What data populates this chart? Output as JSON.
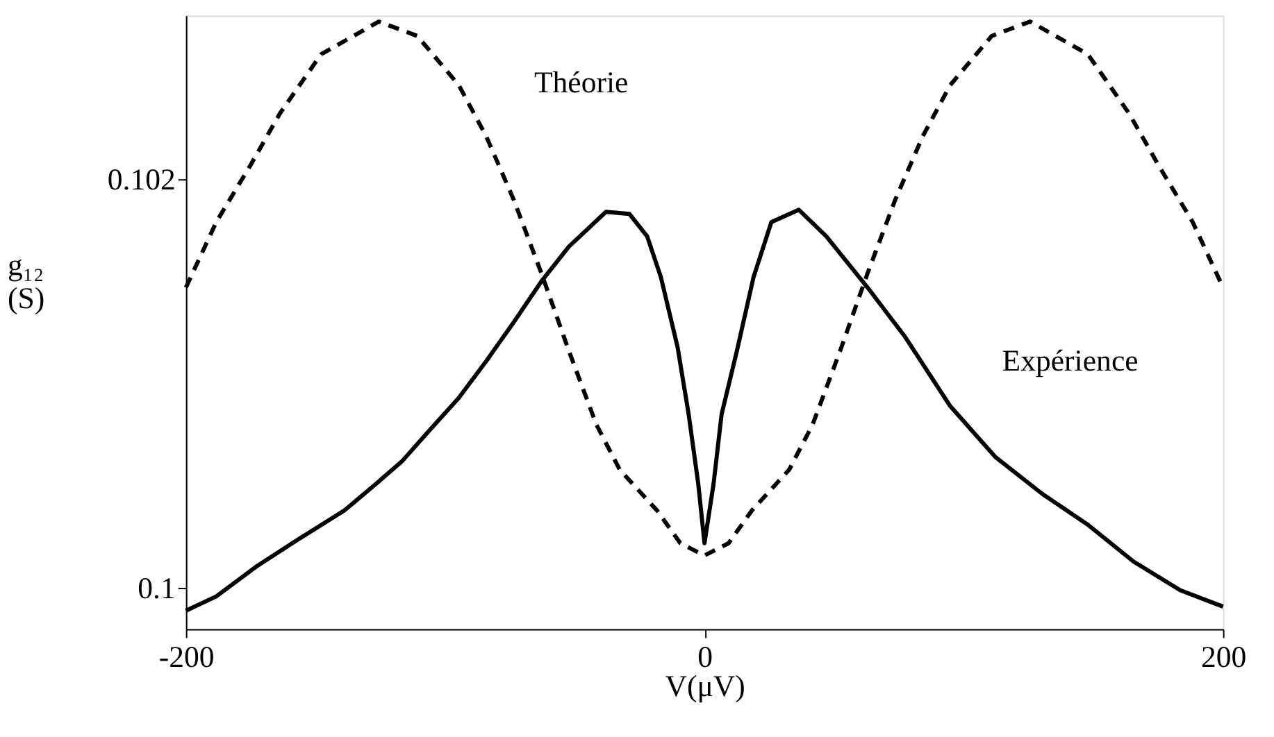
{
  "chart_data": {
    "type": "line",
    "xlabel": "V(μV)",
    "ylabel": "g₁₂ (S)",
    "xlim": [
      -200,
      200
    ],
    "xticks": [
      -200,
      0,
      200
    ],
    "ylim": [
      0.0998,
      0.1028
    ],
    "yticks": [
      0.1,
      0.102
    ],
    "grid": false,
    "series": [
      {
        "name": "Théorie",
        "color": "#000000",
        "line_style": "dashed",
        "x": [
          -200,
          -188.3,
          -175,
          -163.8,
          -147.9,
          -125.6,
          -110.8,
          -94.8,
          -84.2,
          -73.6,
          -62.9,
          -52.3,
          -41.7,
          -32.7,
          -18.3,
          -9.3,
          0,
          9.3,
          18.3,
          32.7,
          41.7,
          52.3,
          62.9,
          73.6,
          84.2,
          94.8,
          110.8,
          125.6,
          147.9,
          163.8,
          175,
          188.3,
          200
        ],
        "values": [
          0.10147,
          0.10179,
          0.10207,
          0.10232,
          0.10261,
          0.10277,
          0.1027,
          0.10246,
          0.10221,
          0.1019,
          0.10154,
          0.10116,
          0.1008,
          0.10058,
          0.10038,
          0.10022,
          0.10016,
          0.10022,
          0.10038,
          0.10058,
          0.1008,
          0.10116,
          0.10154,
          0.1019,
          0.10221,
          0.10246,
          0.1027,
          0.10277,
          0.10261,
          0.10232,
          0.10207,
          0.10179,
          0.10147
        ]
      },
      {
        "name": "Expérience",
        "color": "#000000",
        "line_style": "solid",
        "x": [
          -200,
          -188.3,
          -172.4,
          -156.5,
          -138.9,
          -126.7,
          -116.7,
          -105.5,
          -94.8,
          -84.2,
          -73.6,
          -62.9,
          -52.3,
          -38,
          -29,
          -22.1,
          -16.8,
          -10.4,
          -6.1,
          -2.4,
          0,
          3.5,
          6.6,
          12.5,
          18.9,
          25.8,
          36.4,
          47,
          62.9,
          77.3,
          94.8,
          112.3,
          130.4,
          147.9,
          165.5,
          183.5,
          200
        ],
        "values": [
          0.09989,
          0.09996,
          0.10011,
          0.10024,
          0.10038,
          0.10051,
          0.10062,
          0.10078,
          0.10093,
          0.10111,
          0.1013,
          0.1015,
          0.10167,
          0.10184,
          0.10183,
          0.10172,
          0.10152,
          0.10118,
          0.10085,
          0.10051,
          0.10022,
          0.10051,
          0.10085,
          0.10116,
          0.10152,
          0.10179,
          0.10185,
          0.10172,
          0.10147,
          0.10123,
          0.10089,
          0.10064,
          0.10046,
          0.10031,
          0.10013,
          0.09999,
          0.09991
        ]
      }
    ]
  }
}
